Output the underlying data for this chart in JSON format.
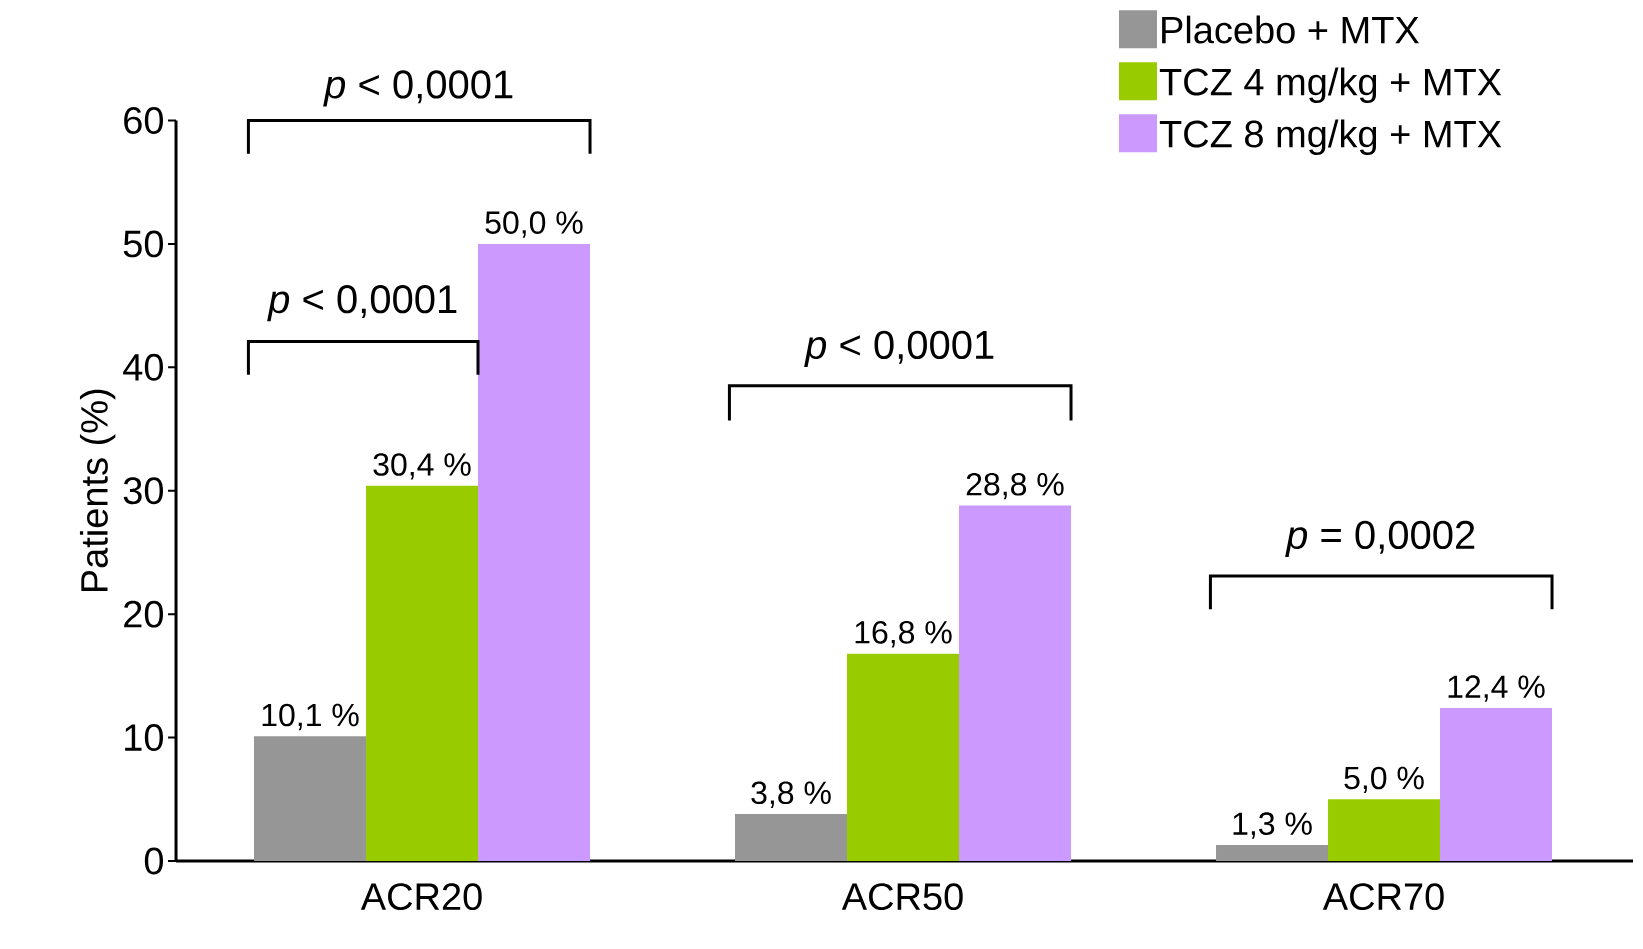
{
  "chart_data": {
    "type": "bar",
    "ylabel": "Patients (%)",
    "categories": [
      "ACR20",
      "ACR50",
      "ACR70"
    ],
    "series": [
      {
        "name": "Placebo + MTX",
        "color": "#969696",
        "values": [
          10.1,
          3.8,
          1.3
        ],
        "value_labels": [
          "10,1 %",
          "3,8 %",
          "1,3 %"
        ]
      },
      {
        "name": "TCZ 4 mg/kg + MTX",
        "color": "#99cc00",
        "values": [
          30.4,
          16.8,
          5.0
        ],
        "value_labels": [
          "30,4 %",
          "16,8 %",
          "5,0 %"
        ]
      },
      {
        "name": "TCZ 8 mg/kg + MTX",
        "color": "#cc99ff",
        "values": [
          50.0,
          28.8,
          12.4
        ],
        "value_labels": [
          "50,0 %",
          "28,8 %",
          "12,4 %"
        ]
      }
    ],
    "ylim": [
      0,
      60
    ],
    "yticks": [
      0,
      10,
      20,
      30,
      40,
      50,
      60
    ],
    "legend": "top right",
    "grid": false,
    "annotations": [
      "*p* < 0,0001",
      "*p* < 0,0001",
      "*p* < 0,0001",
      "*p* = 0,0002"
    ]
  }
}
